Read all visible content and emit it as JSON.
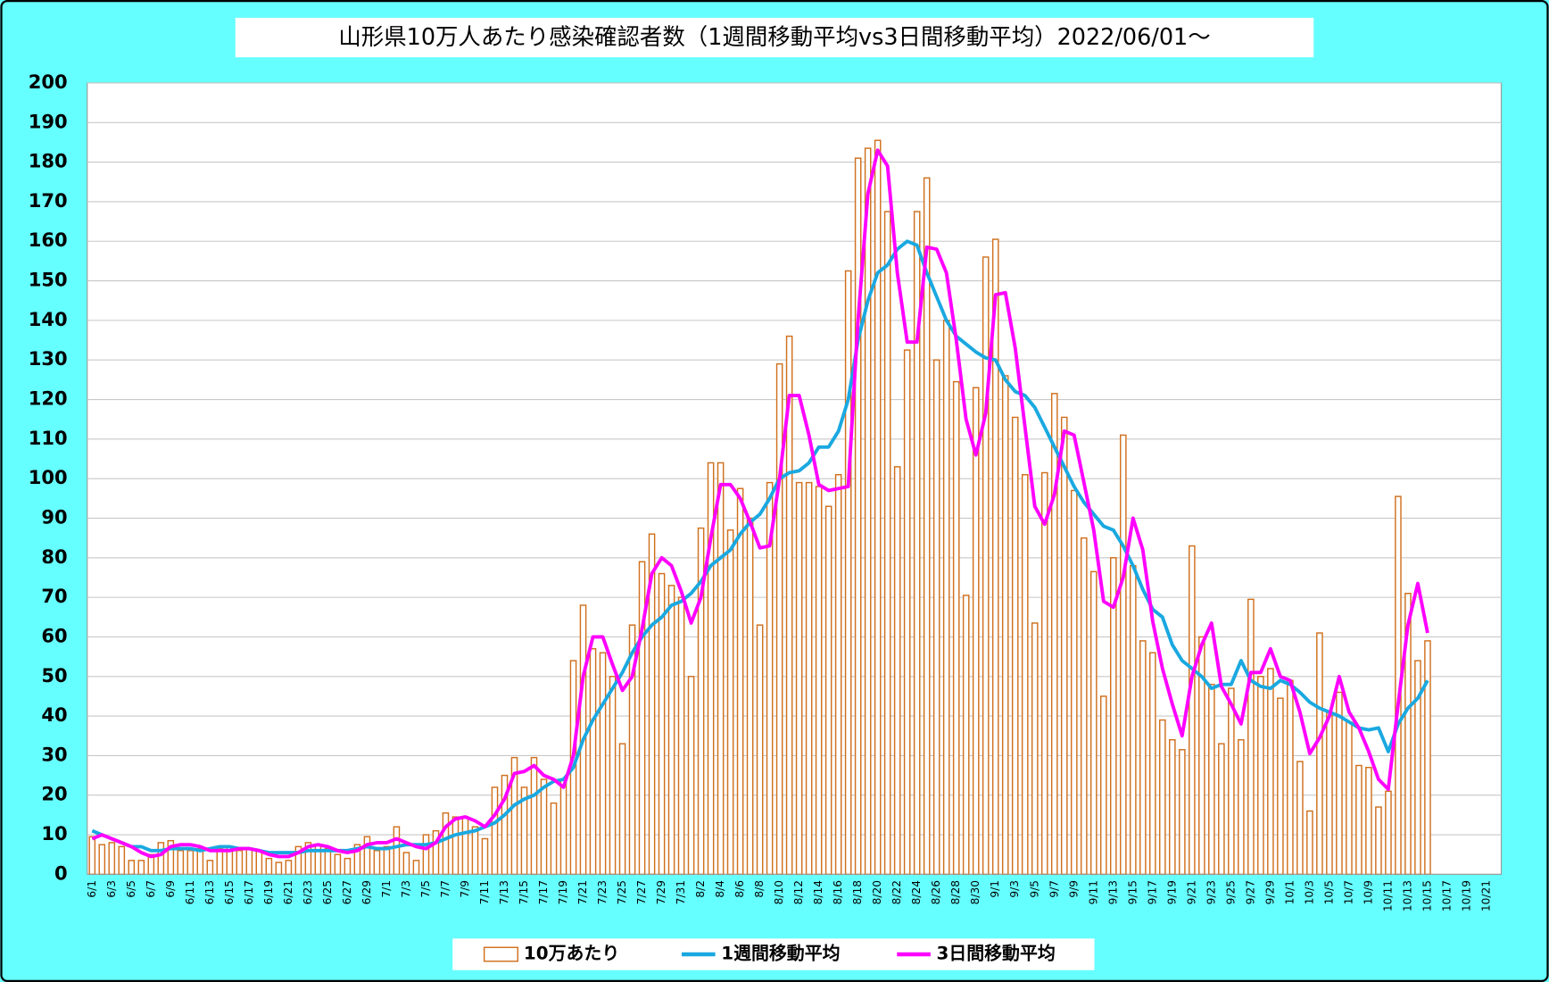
{
  "chart_data": {
    "type": "bar-line",
    "title": "山形県10万人あたり感染確認者数（1週間移動平均vs3日間移動平均）2022/06/01～",
    "categories": [
      "6/1",
      null,
      "6/3",
      null,
      "6/5",
      null,
      "6/7",
      null,
      "6/9",
      null,
      "6/11",
      null,
      "6/13",
      null,
      "6/15",
      null,
      "6/17",
      null,
      "6/19",
      null,
      "6/21",
      null,
      "6/23",
      null,
      "6/25",
      null,
      "6/27",
      null,
      "6/29",
      null,
      "7/1",
      null,
      "7/3",
      null,
      "7/5",
      null,
      "7/7",
      null,
      "7/9",
      null,
      "7/11",
      null,
      "7/13",
      null,
      "7/15",
      null,
      "7/17",
      null,
      "7/19",
      null,
      "7/21",
      null,
      "7/23",
      null,
      "7/25",
      null,
      "7/27",
      null,
      "7/29",
      null,
      "7/31",
      null,
      "8/2",
      null,
      "8/4",
      null,
      "8/6",
      null,
      "8/8",
      null,
      "8/10",
      null,
      "8/12",
      null,
      "8/14",
      null,
      "8/16",
      null,
      "8/18",
      null,
      "8/20",
      null,
      "8/22",
      null,
      "8/24",
      null,
      "8/26",
      null,
      "8/28",
      null,
      "8/30",
      null,
      "9/1",
      null,
      "9/3",
      null,
      "9/5",
      null,
      "9/7",
      null,
      "9/9",
      null,
      "9/11",
      null,
      "9/13",
      null,
      "9/15",
      null,
      "9/17",
      null,
      "9/19",
      null,
      "9/21",
      null,
      "9/23",
      null,
      "9/25",
      null,
      "9/27",
      null,
      "9/29",
      null,
      "10/1",
      null,
      "10/3",
      null,
      "10/5",
      null,
      "10/7",
      null,
      "10/9",
      null,
      "10/11",
      null,
      "10/13",
      null,
      "10/15",
      null,
      "10/17",
      null,
      "10/19",
      null,
      "10/21",
      null
    ],
    "series": [
      {
        "name": "10万あたり",
        "kind": "bar",
        "color": "#d0701e",
        "values": [
          9.5,
          7.5,
          8,
          7,
          3.5,
          3.5,
          5,
          8,
          8.5,
          6,
          6,
          6.5,
          3.5,
          6.5,
          7,
          6,
          6.5,
          6,
          4,
          3,
          3.5,
          7,
          8,
          7.5,
          6.5,
          5,
          4,
          7.5,
          9.5,
          6,
          7,
          12,
          5.5,
          3.5,
          10,
          11,
          15.5,
          14.5,
          14.5,
          12,
          9,
          22,
          25,
          29.5,
          22,
          29.5,
          24,
          18,
          24,
          54,
          68,
          57,
          56,
          50,
          33,
          63,
          79,
          86,
          76,
          73,
          70,
          50,
          87.5,
          104,
          104,
          87,
          97.5,
          90,
          63,
          99,
          129,
          136,
          99,
          99,
          98,
          93,
          101,
          152.5,
          181,
          183.5,
          185.5,
          167.5,
          103,
          132.5,
          167.5,
          176,
          130,
          140,
          124.5,
          70.5,
          123,
          156,
          160.5,
          126,
          115.5,
          101,
          63.5,
          101.5,
          121.5,
          115.5,
          97,
          85,
          76.5,
          45,
          80,
          111,
          78,
          59,
          56,
          39,
          34,
          31.5,
          83,
          60,
          48,
          33,
          47,
          34,
          69.5,
          50,
          52,
          44.5,
          49,
          28.5,
          16,
          61,
          41,
          46,
          38.5,
          27.5,
          27,
          17,
          21,
          95.5,
          71,
          54,
          59,
          null,
          null,
          null,
          null,
          null,
          null,
          null
        ]
      },
      {
        "name": "1週間移動平均",
        "kind": "line",
        "color": "#1aa8e0",
        "values": [
          11,
          10,
          9,
          8,
          7,
          7,
          6,
          6,
          6.5,
          6.5,
          6.5,
          6,
          6.5,
          7,
          7,
          6.5,
          6.5,
          6,
          5.5,
          5.5,
          5.5,
          5.5,
          6,
          6,
          6,
          6,
          6,
          6.5,
          7,
          6.5,
          6.5,
          7,
          7.5,
          7.5,
          7.5,
          8,
          9,
          10,
          10.5,
          11,
          12,
          13,
          15,
          17.5,
          19,
          20,
          22,
          23.5,
          24,
          27,
          34,
          39,
          43,
          47,
          51,
          56,
          60,
          63,
          65,
          68,
          69,
          71,
          74,
          78,
          80,
          82,
          86,
          89,
          91,
          95,
          100,
          101.5,
          102,
          104,
          108,
          108,
          112,
          120,
          135,
          145,
          152,
          154,
          158,
          160,
          159,
          152,
          146,
          140,
          136,
          134,
          132,
          130.5,
          130,
          125,
          122,
          121,
          118,
          113,
          108,
          103,
          98,
          94,
          91,
          88,
          87,
          83,
          78,
          72,
          67,
          65,
          58,
          54,
          52,
          50,
          47,
          48,
          48,
          54,
          49,
          47.5,
          47,
          49,
          48,
          46,
          43.5,
          42,
          41,
          40,
          38.5,
          37,
          36.5,
          37,
          31,
          38,
          42,
          44.5,
          49,
          null,
          null,
          null,
          null,
          null,
          null,
          null
        ]
      },
      {
        "name": "3日間移動平均",
        "kind": "line",
        "color": "#ff00ff",
        "values": [
          9,
          10,
          9,
          8,
          7,
          5.5,
          4.5,
          5,
          7,
          7.5,
          7.5,
          7,
          6,
          6,
          6,
          6.5,
          6.5,
          6,
          5,
          4.5,
          4.5,
          5.5,
          7,
          7.5,
          7,
          6,
          5.5,
          6,
          7.5,
          8,
          8,
          9,
          8,
          7,
          6.5,
          8,
          12,
          14,
          14.5,
          13.5,
          12,
          15,
          19,
          25.5,
          26,
          27.5,
          25,
          24,
          22,
          30,
          50,
          60,
          60,
          53,
          46.5,
          50,
          62,
          76,
          80,
          78,
          71.5,
          63.5,
          70,
          85,
          98.5,
          98.5,
          95,
          89,
          82.5,
          83,
          100,
          121,
          121,
          111,
          98.5,
          97,
          97.5,
          98,
          140,
          172,
          183,
          179,
          152,
          134.5,
          134.5,
          158.5,
          158,
          152,
          135,
          115,
          106,
          116.5,
          146.5,
          147,
          133,
          113,
          93,
          88.5,
          96,
          112,
          111,
          99,
          87,
          69,
          67.5,
          75,
          90,
          82,
          64,
          52,
          43,
          35,
          50,
          58,
          63.5,
          47.5,
          43,
          38,
          51,
          51,
          57,
          50,
          49,
          41,
          30.5,
          34.5,
          40,
          50,
          41,
          37,
          31,
          24,
          21.5,
          43,
          63,
          73.5,
          61,
          null,
          null,
          null,
          null,
          null,
          null,
          null
        ]
      }
    ],
    "ylim": [
      0,
      200
    ],
    "yticks": [
      0,
      10,
      20,
      30,
      40,
      50,
      60,
      70,
      80,
      90,
      100,
      110,
      120,
      130,
      140,
      150,
      160,
      170,
      180,
      190,
      200
    ],
    "grid": true,
    "legend": "bottom"
  }
}
